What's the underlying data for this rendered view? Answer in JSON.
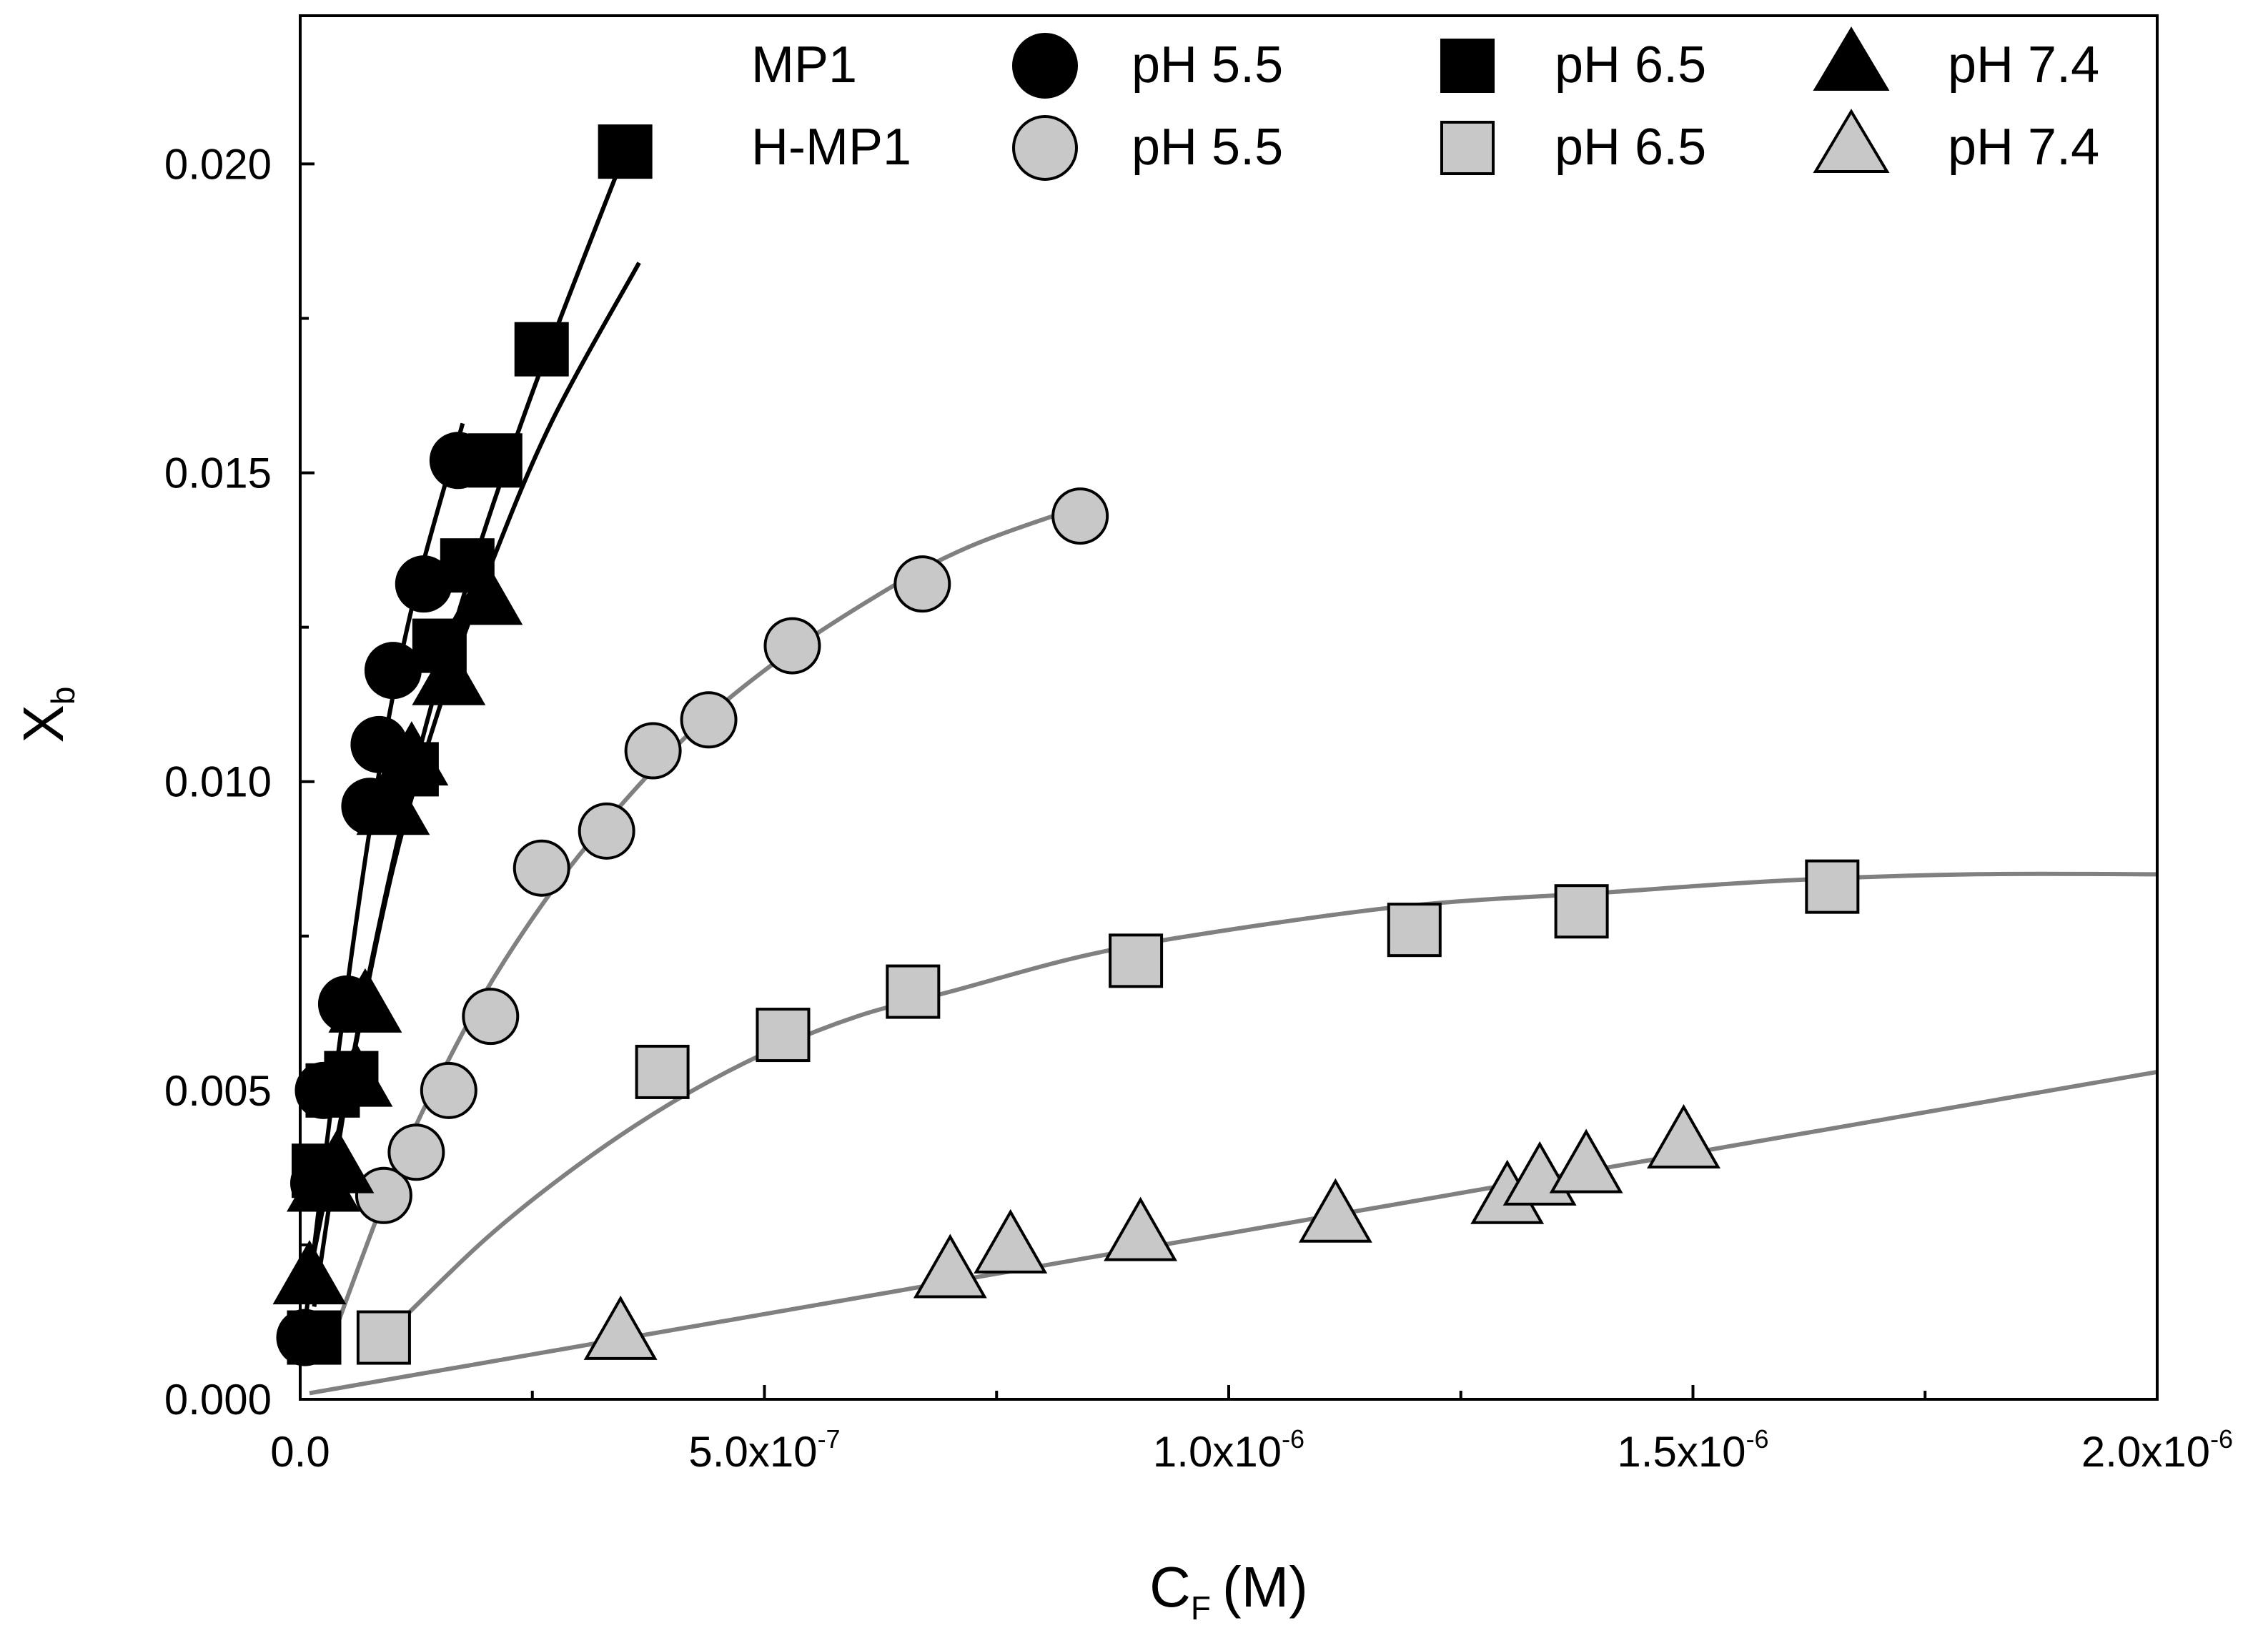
{
  "chart_data": {
    "type": "scatter",
    "title": "",
    "xlabel": {
      "main": "C",
      "sub": "F",
      "unit": "(M)"
    },
    "ylabel": {
      "main": "X",
      "sub": "b"
    },
    "xlim": [
      0,
      2e-06
    ],
    "ylim": [
      0,
      0.0224
    ],
    "x_ticks": [
      {
        "value": 0,
        "mantissa": "0.0",
        "exp": ""
      },
      {
        "value": 5e-07,
        "mantissa": "5.0x10",
        "exp": "-7"
      },
      {
        "value": 1e-06,
        "mantissa": "1.0x10",
        "exp": "-6"
      },
      {
        "value": 1.5e-06,
        "mantissa": "1.5x10",
        "exp": "-6"
      },
      {
        "value": 2e-06,
        "mantissa": "2.0x10",
        "exp": "-6"
      }
    ],
    "x_minor_ticks": [
      2.5e-07,
      7.5e-07,
      1.25e-06,
      1.75e-06
    ],
    "y_ticks": [
      {
        "value": 0,
        "label": "0.000"
      },
      {
        "value": 0.005,
        "label": "0.005"
      },
      {
        "value": 0.01,
        "label": "0.010"
      },
      {
        "value": 0.015,
        "label": "0.015"
      },
      {
        "value": 0.02,
        "label": "0.020"
      }
    ],
    "y_minor_ticks": [
      0.0025,
      0.0075,
      0.0125,
      0.0175
    ],
    "grid": false,
    "legend": {
      "position": "top",
      "row_labels": [
        "MP1",
        "H-MP1"
      ],
      "items": [
        {
          "series": "MP1 pH 5.5",
          "label": "pH 5.5"
        },
        {
          "series": "MP1 pH 6.5",
          "label": "pH 6.5"
        },
        {
          "series": "MP1 pH 7.4",
          "label": "pH 7.4"
        },
        {
          "series": "H-MP1 pH 5.5",
          "label": "pH 5.5"
        },
        {
          "series": "H-MP1 pH 6.5",
          "label": "pH 6.5"
        },
        {
          "series": "H-MP1 pH 7.4",
          "label": "pH 7.4"
        }
      ]
    },
    "series": [
      {
        "name": "MP1 pH 5.5",
        "marker": "circle",
        "fill": "#000000",
        "x": [
          5e-09,
          2e-08,
          2.5e-08,
          5e-08,
          7.5e-08,
          8.5e-08,
          1e-07,
          1.33e-07,
          1.7e-07
        ],
        "y": [
          0.001,
          0.0035,
          0.005,
          0.0064,
          0.0096,
          0.0106,
          0.0118,
          0.0132,
          0.0152
        ],
        "fit": {
          "x": [
            5e-09,
            4e-08,
            8e-08,
            1.2e-07,
            1.75e-07
          ],
          "y": [
            0.0012,
            0.0055,
            0.0097,
            0.0128,
            0.0158
          ]
        }
      },
      {
        "name": "MP1 pH 6.5",
        "marker": "square",
        "fill": "#000000",
        "x": [
          1.5e-08,
          2e-08,
          3.5e-08,
          5.5e-08,
          1.2e-07,
          1.5e-07,
          1.8e-07,
          2.1e-07,
          2.6e-07,
          3.5e-07
        ],
        "y": [
          0.001,
          0.0037,
          0.005,
          0.0052,
          0.0102,
          0.0122,
          0.0135,
          0.0152,
          0.017,
          0.0202
        ],
        "fit": {
          "x": [
            1.5e-08,
            6e-08,
            1.2e-07,
            1.8e-07,
            2.5e-07,
            3.45e-07
          ],
          "y": [
            0.0015,
            0.0058,
            0.01,
            0.0132,
            0.0163,
            0.02
          ]
        }
      },
      {
        "name": "MP1 pH 7.4",
        "marker": "triangle",
        "fill": "#000000",
        "x": [
          1e-08,
          2.5e-08,
          4e-08,
          6e-08,
          7e-08,
          1e-07,
          1.2e-07,
          1.6e-07,
          2e-07
        ],
        "y": [
          0.002,
          0.0035,
          0.0038,
          0.0052,
          0.0064,
          0.0096,
          0.0104,
          0.0117,
          0.013
        ],
        "fit": {
          "x": [
            1e-08,
            5e-08,
            1e-07,
            1.5e-07,
            2e-07,
            2.7e-07,
            3.65e-07
          ],
          "y": [
            0.002,
            0.005,
            0.0086,
            0.0112,
            0.0133,
            0.0158,
            0.0184
          ]
        }
      },
      {
        "name": "H-MP1 pH 5.5",
        "marker": "circle",
        "fill": "#c8c8c8",
        "x": [
          9e-08,
          1.25e-07,
          1.6e-07,
          2.05e-07,
          2.6e-07,
          3.3e-07,
          3.8e-07,
          4.4e-07,
          5.3e-07,
          6.7e-07,
          8.4e-07
        ],
        "y": [
          0.0033,
          0.004,
          0.005,
          0.0062,
          0.0086,
          0.0092,
          0.0105,
          0.011,
          0.0122,
          0.0132,
          0.0143
        ],
        "fit": {
          "x": [
            3e-08,
            1e-07,
            1.6e-07,
            2.2e-07,
            3e-07,
            4e-07,
            5e-07,
            6.2e-07,
            7.2e-07,
            8.5e-07
          ],
          "y": [
            0.0008,
            0.0036,
            0.0055,
            0.0071,
            0.0088,
            0.0105,
            0.0118,
            0.013,
            0.0138,
            0.0145
          ]
        }
      },
      {
        "name": "H-MP1 pH 6.5",
        "marker": "square",
        "fill": "#c8c8c8",
        "x": [
          9e-08,
          3.9e-07,
          5.2e-07,
          6.6e-07,
          9e-07,
          1.2e-06,
          1.38e-06,
          1.65e-06
        ],
        "y": [
          0.001,
          0.0053,
          0.0059,
          0.0066,
          0.0071,
          0.0076,
          0.0079,
          0.0083
        ],
        "fit": {
          "x": [
            9e-08,
            2e-07,
            3e-07,
            4e-07,
            5e-07,
            6e-07,
            7e-07,
            8.5e-07,
            1e-06,
            1.2e-06,
            1.4e-06,
            1.6e-06,
            1.8e-06,
            2e-06
          ],
          "y": [
            0.001,
            0.0026,
            0.0038,
            0.0048,
            0.0056,
            0.0062,
            0.0066,
            0.0072,
            0.0076,
            0.008,
            0.0082,
            0.0084,
            0.0085,
            0.0085
          ]
        }
      },
      {
        "name": "H-MP1 pH 7.4",
        "marker": "triangle",
        "fill": "#c8c8c8",
        "x": [
          3.45e-07,
          7e-07,
          7.65e-07,
          9.05e-07,
          1.115e-06,
          1.3e-06,
          1.335e-06,
          1.385e-06,
          1.49e-06
        ],
        "y": [
          0.0011,
          0.0021,
          0.0025,
          0.0027,
          0.003,
          0.0033,
          0.0036,
          0.0038,
          0.0042
        ],
        "fit": {
          "x": [
            1e-08,
            2e-06
          ],
          "y": [
            0.0001,
            0.0053
          ]
        }
      }
    ]
  }
}
